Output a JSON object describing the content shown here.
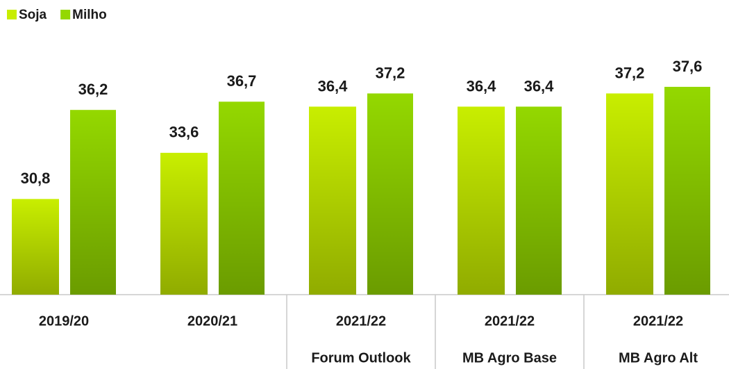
{
  "chart_data": {
    "type": "bar",
    "categories": [
      "2019/20",
      "2020/21",
      "2021/22",
      "2021/22",
      "2021/22"
    ],
    "category_sublabels": [
      null,
      null,
      "Forum Outlook",
      "MB Agro Base",
      "MB Agro Alt"
    ],
    "series": [
      {
        "name": "Soja",
        "color": "#c8ee00",
        "values": [
          30.8,
          33.6,
          36.4,
          36.4,
          37.2
        ],
        "value_labels": [
          "30,8",
          "33,6",
          "36,4",
          "36,4",
          "37,2"
        ]
      },
      {
        "name": "Milho",
        "color": "#94d800",
        "values": [
          36.2,
          36.7,
          37.2,
          36.4,
          37.6
        ],
        "value_labels": [
          "36,2",
          "36,7",
          "37,2",
          "36,4",
          "37,6"
        ]
      }
    ],
    "ylim": [
      25,
      40
    ],
    "legend": "top-left"
  }
}
